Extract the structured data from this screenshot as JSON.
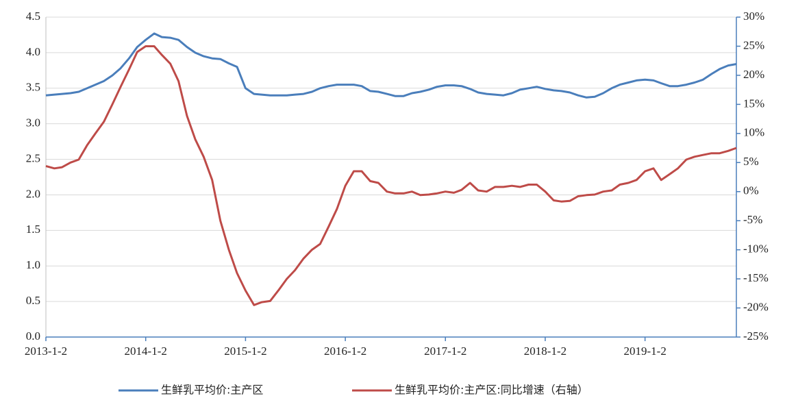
{
  "chart_data": {
    "type": "line",
    "x": [
      "2013-1-2",
      "2013-2-2",
      "2013-3-2",
      "2013-4-2",
      "2013-5-2",
      "2013-6-2",
      "2013-7-2",
      "2013-8-2",
      "2013-9-2",
      "2013-10-2",
      "2013-11-2",
      "2013-12-2",
      "2014-1-2",
      "2014-2-2",
      "2014-3-2",
      "2014-4-2",
      "2014-5-2",
      "2014-6-2",
      "2014-7-2",
      "2014-8-2",
      "2014-9-2",
      "2014-10-2",
      "2014-11-2",
      "2014-12-2",
      "2015-1-2",
      "2015-2-2",
      "2015-3-2",
      "2015-4-2",
      "2015-5-2",
      "2015-6-2",
      "2015-7-2",
      "2015-8-2",
      "2015-9-2",
      "2015-10-2",
      "2015-11-2",
      "2015-12-2",
      "2016-1-2",
      "2016-2-2",
      "2016-3-2",
      "2016-4-2",
      "2016-5-2",
      "2016-6-2",
      "2016-7-2",
      "2016-8-2",
      "2016-9-2",
      "2016-10-2",
      "2016-11-2",
      "2016-12-2",
      "2017-1-2",
      "2017-2-2",
      "2017-3-2",
      "2017-4-2",
      "2017-5-2",
      "2017-6-2",
      "2017-7-2",
      "2017-8-2",
      "2017-9-2",
      "2017-10-2",
      "2017-11-2",
      "2017-12-2",
      "2018-1-2",
      "2018-2-2",
      "2018-3-2",
      "2018-4-2",
      "2018-5-2",
      "2018-6-2",
      "2018-7-2",
      "2018-8-2",
      "2018-9-2",
      "2018-10-2",
      "2018-11-2",
      "2018-12-2",
      "2019-1-2",
      "2019-2-2",
      "2019-3-2",
      "2019-4-2",
      "2019-5-2",
      "2019-6-2",
      "2019-7-2",
      "2019-8-2",
      "2019-9-2",
      "2019-10-2",
      "2019-11-2",
      "2019-12-2"
    ],
    "series": [
      {
        "name": "生鲜乳平均价:主产区",
        "color": "#4a7ebb",
        "values": [
          3.4,
          3.41,
          3.42,
          3.43,
          3.45,
          3.5,
          3.55,
          3.6,
          3.68,
          3.78,
          3.92,
          4.08,
          4.18,
          4.27,
          4.22,
          4.21,
          4.18,
          4.08,
          4.0,
          3.95,
          3.92,
          3.91,
          3.85,
          3.8,
          3.5,
          3.42,
          3.41,
          3.4,
          3.4,
          3.4,
          3.41,
          3.42,
          3.45,
          3.5,
          3.53,
          3.55,
          3.55,
          3.55,
          3.53,
          3.46,
          3.45,
          3.42,
          3.39,
          3.39,
          3.43,
          3.45,
          3.48,
          3.52,
          3.54,
          3.54,
          3.53,
          3.49,
          3.44,
          3.42,
          3.41,
          3.4,
          3.43,
          3.48,
          3.5,
          3.52,
          3.49,
          3.47,
          3.46,
          3.44,
          3.4,
          3.37,
          3.38,
          3.43,
          3.5,
          3.55,
          3.58,
          3.61,
          3.62,
          3.61,
          3.57,
          3.53,
          3.53,
          3.55,
          3.58,
          3.62,
          3.7,
          3.77,
          3.82,
          3.84
        ]
      },
      {
        "name": "生鲜乳平均价:主产区:同比增速（右轴）",
        "color": "#be4b48",
        "axis": "y2",
        "values": [
          4.4,
          4,
          4.2,
          5,
          5.5,
          8,
          10,
          12,
          15,
          18,
          21,
          24,
          25,
          25,
          23.5,
          22,
          19,
          13,
          9,
          6,
          2,
          -5,
          -10,
          -14,
          -17,
          -19.5,
          -19,
          -18.8,
          -17,
          -15,
          -13.5,
          -11.5,
          -10,
          -9,
          -6,
          -3,
          1,
          3.5,
          3.5,
          1.8,
          1.5,
          0,
          -0.3,
          -0.3,
          0,
          -0.6,
          -0.5,
          -0.3,
          0,
          -0.2,
          0.3,
          1.5,
          0.2,
          0,
          0.8,
          0.8,
          1,
          0.8,
          1.2,
          1.2,
          0,
          -1.5,
          -1.7,
          -1.6,
          -0.8,
          -0.6,
          -0.5,
          0,
          0.2,
          1.2,
          1.5,
          2,
          3.5,
          4,
          2,
          3,
          4,
          5.5,
          6,
          6.3,
          6.6,
          6.6,
          7,
          7.5
        ]
      }
    ],
    "xlim": [
      "2013-1-2",
      "2019-12-2"
    ],
    "xticks": [
      "2013-1-2",
      "2014-1-2",
      "2015-1-2",
      "2016-1-2",
      "2017-1-2",
      "2018-1-2",
      "2019-1-2"
    ],
    "ylim": [
      0,
      4.5
    ],
    "yticks": [
      {
        "value": 0,
        "label": "0.0"
      },
      0.5,
      {
        "value": 1,
        "label": "1.0"
      },
      1.5,
      {
        "value": 2,
        "label": "2.0"
      },
      2.5,
      {
        "value": 3,
        "label": "3.0"
      },
      3.5,
      {
        "value": 4,
        "label": "4.0"
      },
      4.5
    ],
    "y2lim": [
      -25,
      30
    ],
    "y2ticks": [
      {
        "value": -25,
        "label": "-25%"
      },
      {
        "value": -20,
        "label": "-20%"
      },
      {
        "value": -15,
        "label": "-15%"
      },
      {
        "value": -10,
        "label": "-10%"
      },
      {
        "value": -5,
        "label": "-5%"
      },
      {
        "value": 0,
        "label": "0%"
      },
      {
        "value": 5,
        "label": "5%"
      },
      {
        "value": 10,
        "label": "10%"
      },
      {
        "value": 15,
        "label": "15%"
      },
      {
        "value": 20,
        "label": "20%"
      },
      {
        "value": 25,
        "label": "25%"
      },
      {
        "value": 30,
        "label": "30%"
      }
    ],
    "grid": true,
    "legend": "bottom"
  }
}
